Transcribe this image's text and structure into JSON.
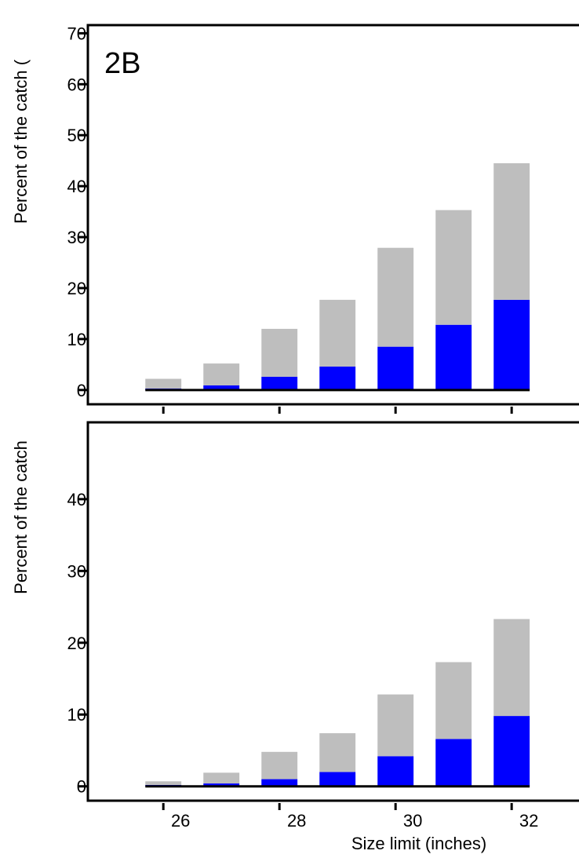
{
  "chart_data": [
    {
      "type": "bar",
      "stacked": true,
      "annotation": "2B",
      "y_label": "Percent of the catch (",
      "x": [
        26,
        27,
        28,
        29,
        30,
        31,
        32
      ],
      "series": [
        {
          "color": "#0000ff",
          "values": [
            0.3,
            0.9,
            2.6,
            4.6,
            8.5,
            12.8,
            17.7
          ]
        },
        {
          "color": "#bebebe",
          "values": [
            1.9,
            4.3,
            9.4,
            13.1,
            19.4,
            22.5,
            26.8
          ]
        }
      ],
      "xlim": [
        24.7,
        33.16
      ],
      "xticks": [
        26,
        28,
        30,
        32
      ],
      "ylim": [
        -2.8,
        71.6
      ],
      "yticks": [
        0,
        10,
        20,
        30,
        40,
        50,
        60,
        70
      ]
    },
    {
      "type": "bar",
      "stacked": true,
      "y_label": "Percent of the catch",
      "x_label": "Size limit (inches)",
      "x": [
        26,
        27,
        28,
        29,
        30,
        31,
        32
      ],
      "series": [
        {
          "color": "#0000ff",
          "values": [
            0.2,
            0.4,
            1.0,
            2.0,
            4.2,
            6.6,
            9.8
          ]
        },
        {
          "color": "#bebebe",
          "values": [
            0.5,
            1.5,
            3.8,
            5.4,
            8.6,
            10.7,
            13.5
          ]
        }
      ],
      "xlim": [
        24.7,
        33.16
      ],
      "xticks": [
        26,
        28,
        30,
        32
      ],
      "ylim": [
        -2,
        50.7
      ],
      "yticks": [
        0,
        10,
        20,
        30,
        40
      ]
    }
  ]
}
